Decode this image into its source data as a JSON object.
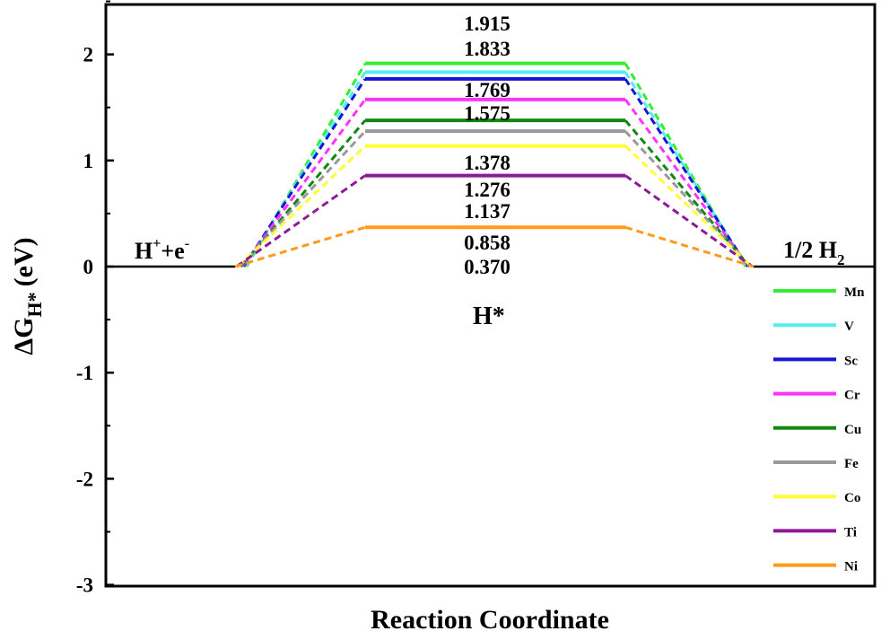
{
  "chart_data": {
    "type": "line",
    "title": "",
    "xlabel": "Reaction Coordinate",
    "ylabel": "ΔG_H* (eV)",
    "ylabel_parts": {
      "base": "ΔG",
      "sub": "H*",
      "unit": "(eV)"
    },
    "ylim": [
      -3,
      2.5
    ],
    "yticks": [
      "-3",
      "-2",
      "-1",
      "0",
      "1",
      "2"
    ],
    "x": [
      "H+ + e-",
      "H*",
      "1/2 H2"
    ],
    "states": {
      "initial": {
        "main": "H",
        "sup1": "+",
        "mid": "+e",
        "sup2": "-"
      },
      "intermediate": "H*",
      "final": {
        "main": "1/2 H",
        "sub": "2"
      }
    },
    "value_labels": [
      "1.915",
      "1.833",
      "1.769",
      "1.575",
      "1.378",
      "1.276",
      "1.137",
      "0.858",
      "0.370"
    ],
    "series": [
      {
        "name": "Mn",
        "values": [
          0,
          1.915,
          0
        ],
        "color": "#33ee33"
      },
      {
        "name": "V",
        "values": [
          0,
          1.833,
          0
        ],
        "color": "#55eeee"
      },
      {
        "name": "Sc",
        "values": [
          0,
          1.769,
          0
        ],
        "color": "#1515d8"
      },
      {
        "name": "Cr",
        "values": [
          0,
          1.575,
          0
        ],
        "color": "#ff33ff"
      },
      {
        "name": "Cu",
        "values": [
          0,
          1.378,
          0
        ],
        "color": "#118811"
      },
      {
        "name": "Fe",
        "values": [
          0,
          1.276,
          0
        ],
        "color": "#999999"
      },
      {
        "name": "Co",
        "values": [
          0,
          1.137,
          0
        ],
        "color": "#ffff33"
      },
      {
        "name": "Ti",
        "values": [
          0,
          0.858,
          0
        ],
        "color": "#8e1a9a"
      },
      {
        "name": "Ni",
        "values": [
          0,
          0.37,
          0
        ],
        "color": "#ff9a1a"
      }
    ],
    "legend_position": "bottom-right",
    "grid": false
  }
}
